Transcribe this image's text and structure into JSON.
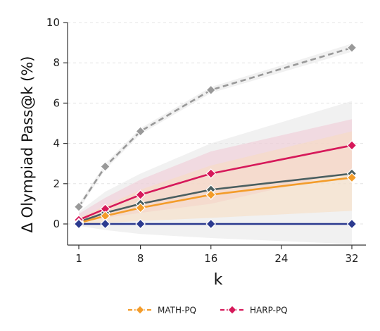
{
  "chart_data": {
    "type": "line",
    "xlabel": "k",
    "ylabel": "Δ Olympiad Pass@k (%)",
    "xlim": [
      0,
      32
    ],
    "ylim": [
      -1,
      10
    ],
    "xticks": [
      1,
      8,
      16,
      24,
      32
    ],
    "yticks": [
      0,
      2,
      4,
      6,
      8,
      10
    ],
    "grid": "horizontal-dashed",
    "x": [
      1,
      4,
      8,
      16,
      32
    ],
    "series": [
      {
        "name": "",
        "color": "#999999",
        "dashed": true,
        "values": [
          0.85,
          2.85,
          4.6,
          6.65,
          8.75
        ],
        "band_low": [
          0.7,
          2.7,
          4.45,
          6.5,
          8.55
        ],
        "band_high": [
          1.0,
          3.0,
          4.75,
          6.8,
          8.95
        ],
        "band_color": "#e6e6e6"
      },
      {
        "name": "",
        "color": "#4a5e60",
        "dashed": false,
        "values": [
          0.1,
          0.55,
          1.0,
          1.7,
          2.5
        ],
        "band_low": [
          -0.1,
          -0.3,
          -0.5,
          -0.7,
          -1.0
        ],
        "band_high": [
          0.6,
          1.6,
          2.5,
          4.0,
          6.1
        ],
        "band_color": "#e6e6e6"
      },
      {
        "name": "HARP-PQ",
        "color": "#d6195a",
        "dashed": false,
        "values": [
          0.2,
          0.75,
          1.45,
          2.5,
          3.9
        ],
        "band_low": [
          0.05,
          0.3,
          0.55,
          1.0,
          2.6
        ],
        "band_high": [
          0.5,
          1.3,
          2.2,
          3.6,
          5.2
        ],
        "band_color": "#f0c6d4"
      },
      {
        "name": "MATH-PQ",
        "color": "#f39c2a",
        "dashed": false,
        "values": [
          0.05,
          0.4,
          0.8,
          1.45,
          2.3
        ],
        "band_low": [
          -0.05,
          0.05,
          0.15,
          0.3,
          0.65
        ],
        "band_high": [
          0.3,
          0.9,
          1.7,
          2.9,
          4.6
        ],
        "band_color": "#f8dcc0"
      },
      {
        "name": "",
        "color": "#2b3a8f",
        "dashed": false,
        "values": [
          0,
          0,
          0,
          0,
          0
        ]
      }
    ],
    "legend": {
      "placement": "bottom-center",
      "entries": [
        {
          "label": "MATH-PQ",
          "color": "#f39c2a"
        },
        {
          "label": "HARP-PQ",
          "color": "#d6195a"
        }
      ]
    }
  }
}
